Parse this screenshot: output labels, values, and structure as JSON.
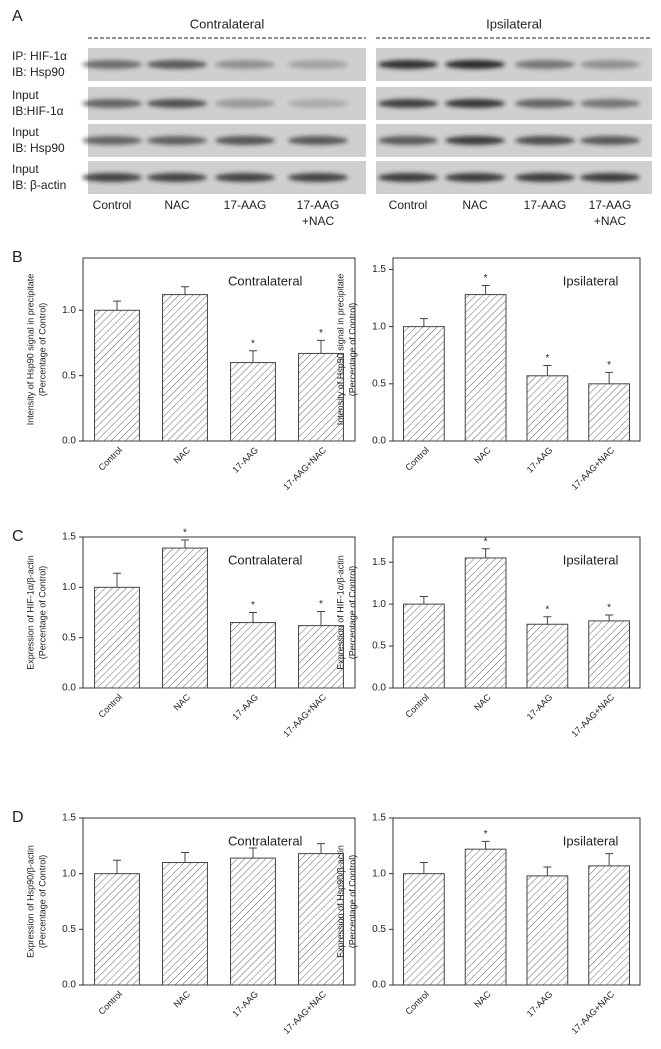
{
  "blot": {
    "panel": "A",
    "groups": [
      {
        "name": "Contralateral",
        "lanes": [
          [
            "Control"
          ],
          [
            "NAC"
          ],
          [
            "17-AAG"
          ],
          [
            "17-AAG",
            "+NAC"
          ]
        ]
      },
      {
        "name": "Ipsilateral",
        "lanes": [
          [
            "Control"
          ],
          [
            "NAC"
          ],
          [
            "17-AAG"
          ],
          [
            "17-AAG",
            "+NAC"
          ]
        ]
      }
    ],
    "rows": [
      [
        "IP: HIF-1α",
        "IB: Hsp90"
      ],
      [
        "Input",
        "IB:HIF-1α"
      ],
      [
        "Input",
        "IB: Hsp90"
      ],
      [
        "Input",
        "IB: β-actin"
      ]
    ]
  },
  "chart_data": [
    {
      "type": "bar",
      "panel": "B",
      "title": "Contralateral",
      "y_label": [
        "Intensity of Hsp90 signal in precipitate",
        "(Percentage of Control)"
      ],
      "categories": [
        "Control",
        "NAC",
        "17-AAG",
        "17-AAG+NAC"
      ],
      "values": [
        1.0,
        1.12,
        0.6,
        0.67
      ],
      "errors": [
        0.07,
        0.06,
        0.09,
        0.1
      ],
      "annotations": [
        {
          "category": "17-AAG",
          "text": "*"
        },
        {
          "category": "17-AAG+NAC",
          "text": "*"
        }
      ],
      "ylim": [
        0,
        1.4
      ],
      "yticks": [
        {
          "value": 0,
          "label": "0.0"
        },
        {
          "value": 0.5,
          "label": "0.5"
        },
        {
          "value": 1,
          "label": "1.0"
        }
      ],
      "color": "#666666"
    },
    {
      "type": "bar",
      "title": "Ipsilateral",
      "y_label": [
        "Intensity of Hsp90 signal in precipitate",
        "(Percentage of Control)"
      ],
      "categories": [
        "Control",
        "NAC",
        "17-AAG",
        "17-AAG+NAC"
      ],
      "values": [
        1.0,
        1.28,
        0.57,
        0.5
      ],
      "errors": [
        0.07,
        0.08,
        0.09,
        0.1
      ],
      "annotations": [
        {
          "category": "NAC",
          "text": "*"
        },
        {
          "category": "17-AAG",
          "text": "*"
        },
        {
          "category": "17-AAG+NAC",
          "text": "*"
        }
      ],
      "ylim": [
        0,
        1.6
      ],
      "yticks": [
        {
          "value": 0,
          "label": "0.0"
        },
        {
          "value": 0.5,
          "label": "0.5"
        },
        {
          "value": 1,
          "label": "1.0"
        },
        {
          "value": 1.5,
          "label": "1.5"
        }
      ],
      "color": "#666666"
    },
    {
      "type": "bar",
      "panel": "C",
      "title": "Contralateral",
      "y_label": [
        "Expression of HIF-1α/β-actin",
        "(Percentage of Control)"
      ],
      "categories": [
        "Control",
        "NAC",
        "17-AAG",
        "17-AAG+NAC"
      ],
      "values": [
        1.0,
        1.39,
        0.65,
        0.62
      ],
      "errors": [
        0.14,
        0.08,
        0.1,
        0.14
      ],
      "annotations": [
        {
          "category": "NAC",
          "text": "*"
        },
        {
          "category": "17-AAG",
          "text": "*"
        },
        {
          "category": "17-AAG+NAC",
          "text": "*"
        }
      ],
      "ylim": [
        0,
        1.5
      ],
      "yticks": [
        {
          "value": 0,
          "label": "0.0"
        },
        {
          "value": 0.5,
          "label": "0.5"
        },
        {
          "value": 1,
          "label": "1.0"
        },
        {
          "value": 1.5,
          "label": "1.5"
        }
      ],
      "color": "#666666"
    },
    {
      "type": "bar",
      "title": "Ipsilateral",
      "y_label": [
        "Expression of HIF-1α/β-actin",
        "(Percentage of Control)"
      ],
      "categories": [
        "Control",
        "NAC",
        "17-AAG",
        "17-AAG+NAC"
      ],
      "values": [
        1.0,
        1.55,
        0.76,
        0.8
      ],
      "errors": [
        0.09,
        0.11,
        0.09,
        0.07
      ],
      "annotations": [
        {
          "category": "NAC",
          "text": "*"
        },
        {
          "category": "17-AAG",
          "text": "*"
        },
        {
          "category": "17-AAG+NAC",
          "text": "*"
        }
      ],
      "ylim": [
        0,
        1.8
      ],
      "yticks": [
        {
          "value": 0,
          "label": "0.0"
        },
        {
          "value": 0.5,
          "label": "0.5"
        },
        {
          "value": 1,
          "label": "1.0"
        },
        {
          "value": 1.5,
          "label": "1.5"
        }
      ],
      "color": "#666666"
    },
    {
      "type": "bar",
      "panel": "D",
      "title": "Contralateral",
      "y_label": [
        "Expression of Hsp90/β-actin",
        "(Percentage of Control)"
      ],
      "categories": [
        "Control",
        "NAC",
        "17-AAG",
        "17-AAG+NAC"
      ],
      "values": [
        1.0,
        1.1,
        1.14,
        1.18
      ],
      "errors": [
        0.12,
        0.09,
        0.09,
        0.09
      ],
      "ylim": [
        0,
        1.5
      ],
      "yticks": [
        {
          "value": 0,
          "label": "0.0"
        },
        {
          "value": 0.5,
          "label": "0.5"
        },
        {
          "value": 1,
          "label": "1.0"
        },
        {
          "value": 1.5,
          "label": "1.5"
        }
      ],
      "color": "#666666"
    },
    {
      "type": "bar",
      "title": "Ipsilateral",
      "y_label": [
        "Expression of Hsp90/β-actin",
        "(Percentage of Control)"
      ],
      "categories": [
        "Control",
        "NAC",
        "17-AAG",
        "17-AAG+NAC"
      ],
      "values": [
        1.0,
        1.22,
        0.98,
        1.07
      ],
      "errors": [
        0.1,
        0.07,
        0.08,
        0.11
      ],
      "annotations": [
        {
          "category": "NAC",
          "text": "*"
        }
      ],
      "ylim": [
        0,
        1.5
      ],
      "yticks": [
        {
          "value": 0,
          "label": "0.0"
        },
        {
          "value": 0.5,
          "label": "0.5"
        },
        {
          "value": 1,
          "label": "1.0"
        },
        {
          "value": 1.5,
          "label": "1.5"
        }
      ],
      "color": "#666666"
    }
  ]
}
